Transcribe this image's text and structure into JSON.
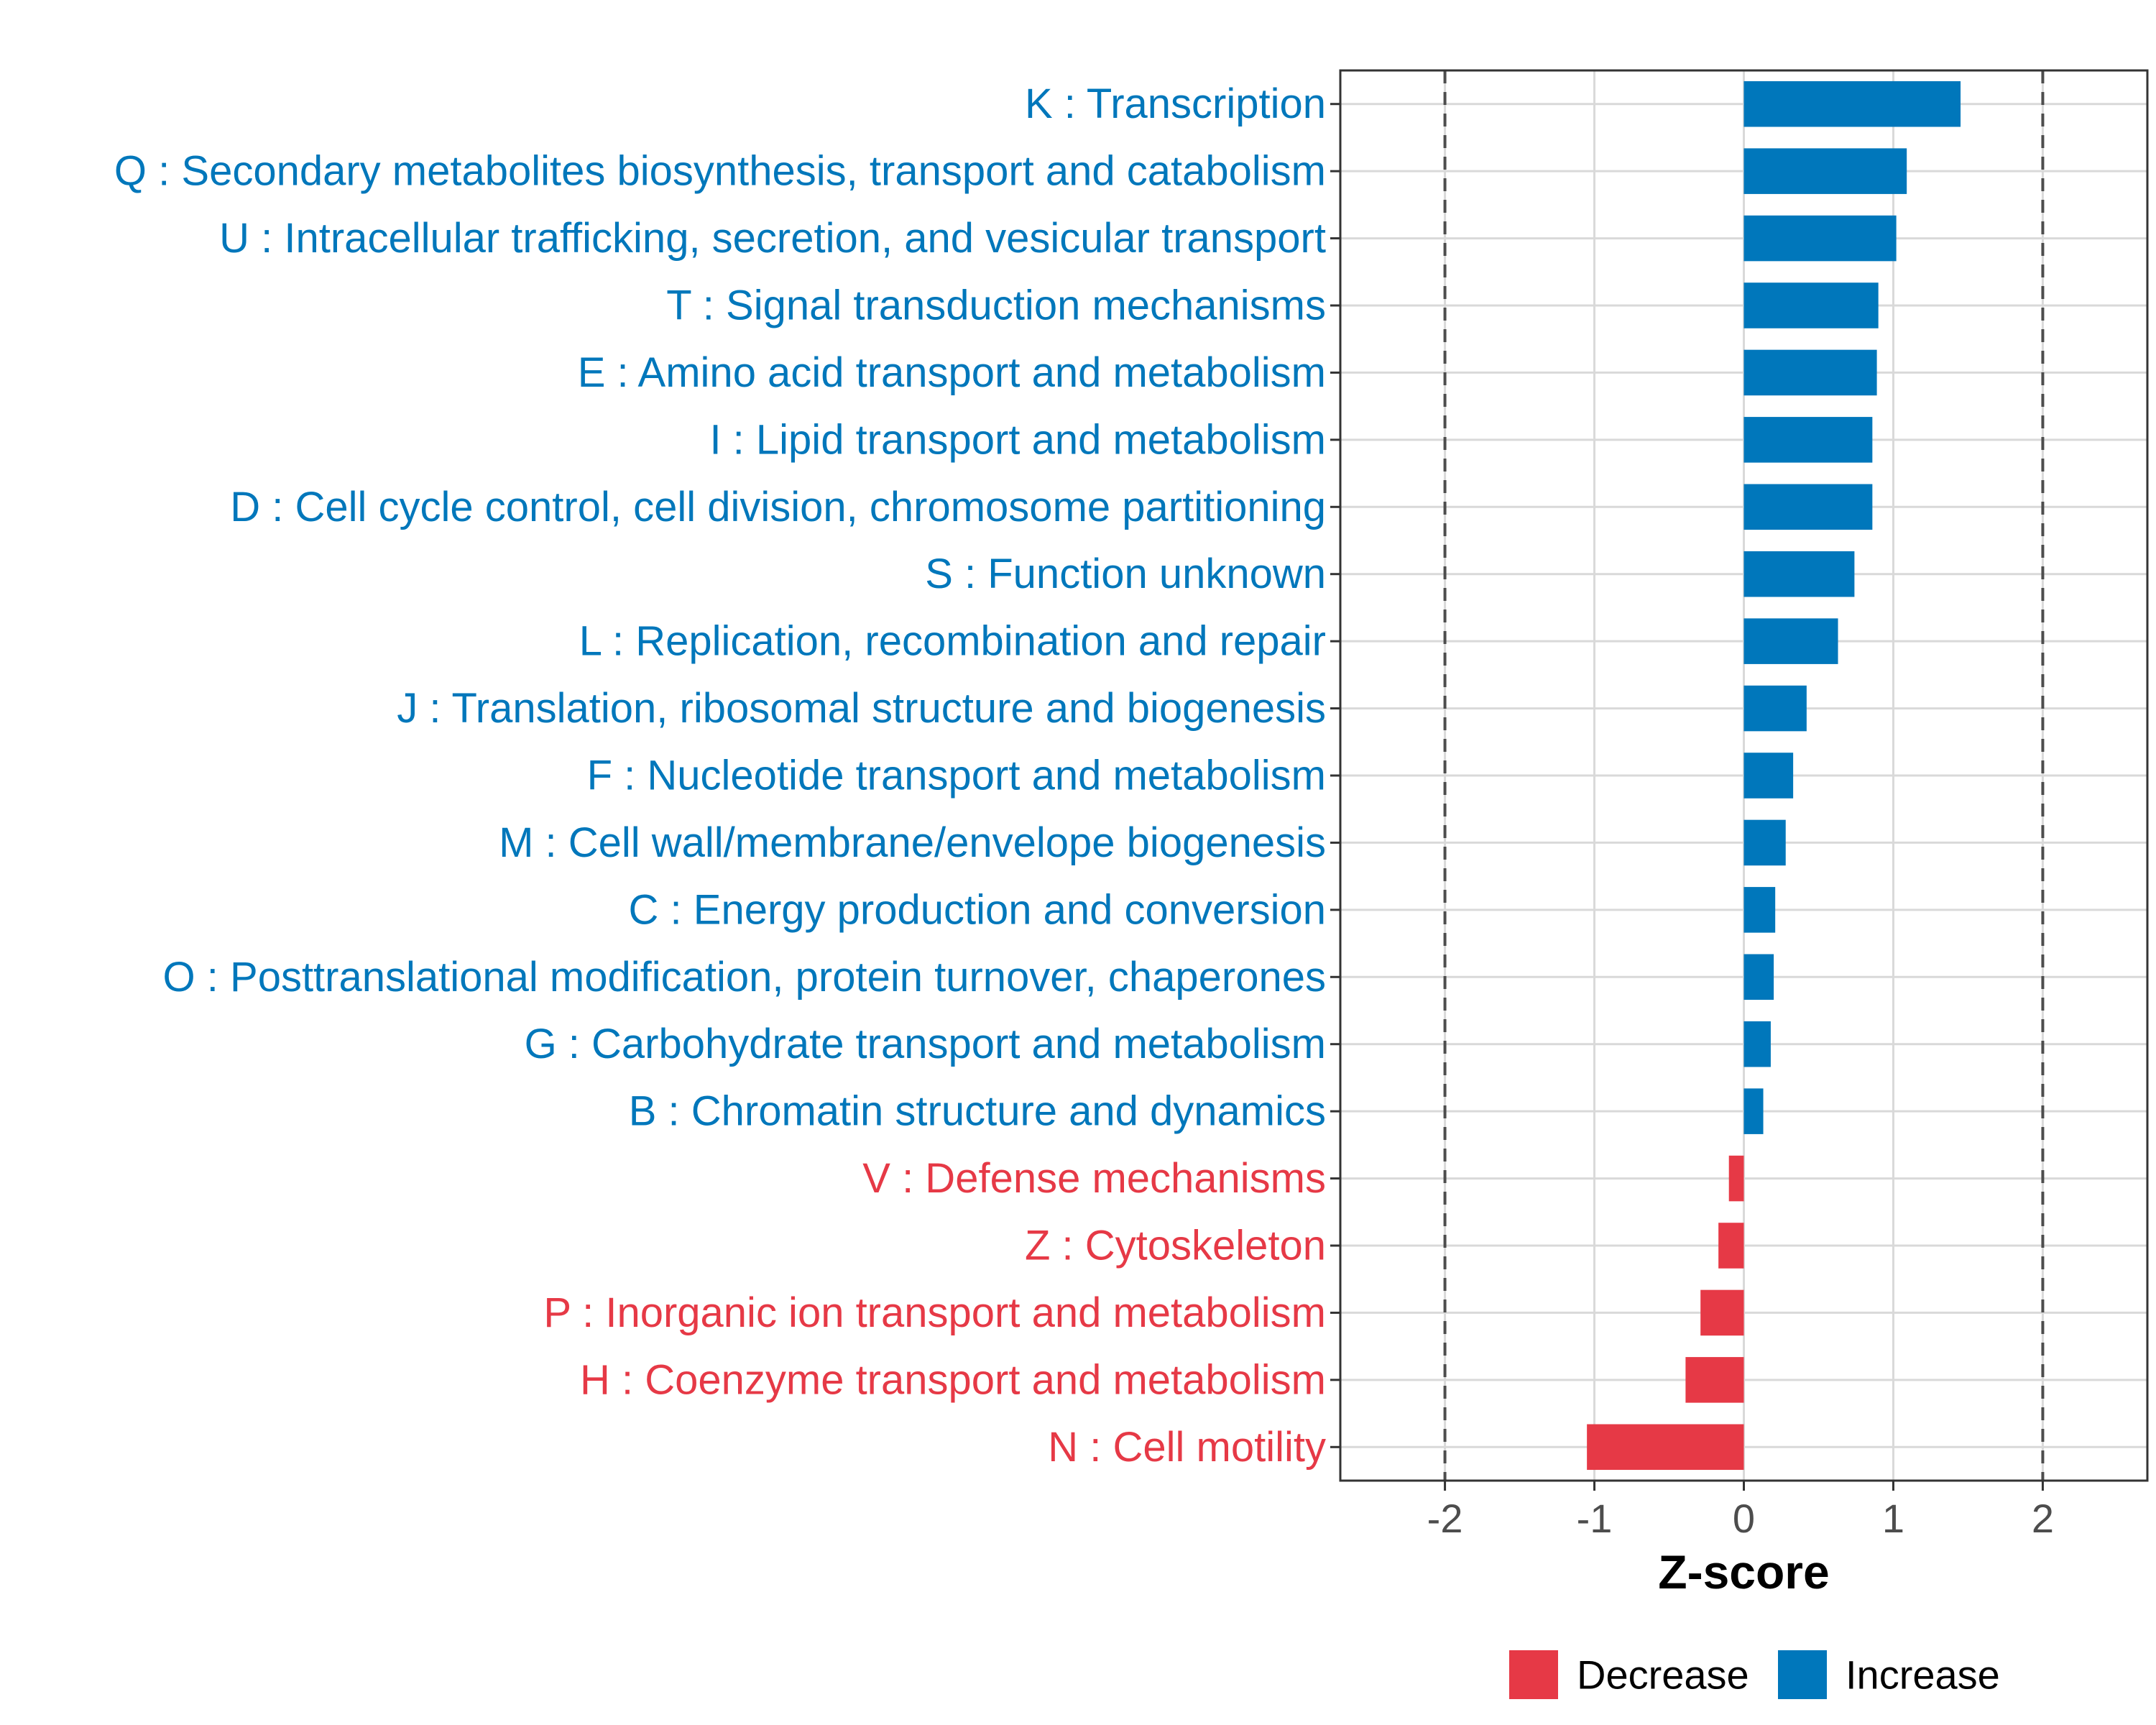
{
  "chart_data": {
    "type": "bar",
    "orientation": "horizontal",
    "categories": [
      "K : Transcription",
      "Q : Secondary metabolites biosynthesis, transport and catabolism",
      "U : Intracellular trafficking, secretion, and vesicular transport",
      "T : Signal transduction mechanisms",
      "E : Amino acid transport and metabolism",
      "I : Lipid transport and metabolism",
      "D : Cell cycle control, cell division, chromosome partitioning",
      "S : Function unknown",
      "L : Replication, recombination and repair",
      "J : Translation, ribosomal structure and biogenesis",
      "F : Nucleotide transport and metabolism",
      "M : Cell wall/membrane/envelope biogenesis",
      "C : Energy production and conversion",
      "O : Posttranslational modification, protein turnover, chaperones",
      "G : Carbohydrate transport and metabolism",
      "B : Chromatin structure and dynamics",
      "V : Defense mechanisms",
      "Z : Cytoskeleton",
      "P : Inorganic ion transport and metabolism",
      "H : Coenzyme transport and metabolism",
      "N : Cell motility"
    ],
    "values": [
      1.45,
      1.09,
      1.02,
      0.9,
      0.89,
      0.86,
      0.86,
      0.74,
      0.63,
      0.42,
      0.33,
      0.28,
      0.21,
      0.2,
      0.18,
      0.13,
      -0.1,
      -0.17,
      -0.29,
      -0.39,
      -1.05
    ],
    "groups": [
      "Increase",
      "Increase",
      "Increase",
      "Increase",
      "Increase",
      "Increase",
      "Increase",
      "Increase",
      "Increase",
      "Increase",
      "Increase",
      "Increase",
      "Increase",
      "Increase",
      "Increase",
      "Increase",
      "Decrease",
      "Decrease",
      "Decrease",
      "Decrease",
      "Decrease"
    ],
    "xlabel": "Z-score",
    "ylabel": "",
    "xlim": [
      -2.7,
      2.7
    ],
    "xticks": [
      -2,
      -1,
      0,
      1,
      2
    ],
    "xtick_labels": [
      "-2",
      "-1",
      "0",
      "1",
      "2"
    ],
    "reference_lines": [
      -2,
      2
    ],
    "grid": true,
    "legend": {
      "position": "bottom",
      "entries": [
        {
          "label": "Decrease",
          "color": "#e63946"
        },
        {
          "label": "Increase",
          "color": "#0077bb"
        }
      ]
    },
    "colors": {
      "Decrease": "#e63946",
      "Increase": "#0077bb"
    }
  }
}
